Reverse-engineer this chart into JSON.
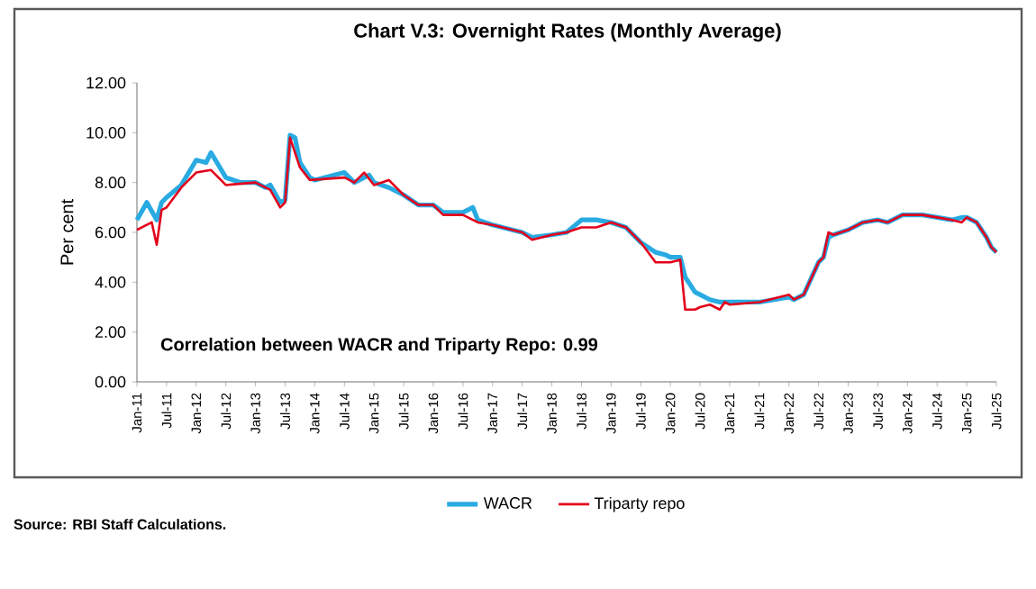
{
  "chart_data": {
    "type": "line",
    "title": "Chart V.3: Overnight Rates (Monthly Average)",
    "ylabel": "Per cent",
    "annotations": [
      "Correlation between WACR and Triparty Repo: 0.99",
      "Source: RBI Staff Calculations."
    ],
    "xlim": [
      "2011-01",
      "2025-07"
    ],
    "ylim": [
      0,
      12
    ],
    "xticks": [
      {
        "value": "2011-01",
        "label": "Jan-11"
      },
      {
        "value": "2011-07",
        "label": "Jul-11"
      },
      {
        "value": "2012-01",
        "label": "Jan-12"
      },
      {
        "value": "2012-07",
        "label": "Jul-12"
      },
      {
        "value": "2013-01",
        "label": "Jan-13"
      },
      {
        "value": "2013-07",
        "label": "Jul-13"
      },
      {
        "value": "2014-01",
        "label": "Jan-14"
      },
      {
        "value": "2014-07",
        "label": "Jul-14"
      },
      {
        "value": "2015-01",
        "label": "Jan-15"
      },
      {
        "value": "2015-07",
        "label": "Jul-15"
      },
      {
        "value": "2016-01",
        "label": "Jan-16"
      },
      {
        "value": "2016-07",
        "label": "Jul-16"
      },
      {
        "value": "2017-01",
        "label": "Jan-17"
      },
      {
        "value": "2017-07",
        "label": "Jul-17"
      },
      {
        "value": "2018-01",
        "label": "Jan-18"
      },
      {
        "value": "2018-07",
        "label": "Jul-18"
      },
      {
        "value": "2019-01",
        "label": "Jan-19"
      },
      {
        "value": "2019-07",
        "label": "Jul-19"
      },
      {
        "value": "2020-01",
        "label": "Jan-20"
      },
      {
        "value": "2020-07",
        "label": "Jul-20"
      },
      {
        "value": "2021-01",
        "label": "Jan-21"
      },
      {
        "value": "2021-07",
        "label": "Jul-21"
      },
      {
        "value": "2022-01",
        "label": "Jan-22"
      },
      {
        "value": "2022-07",
        "label": "Jul-22"
      },
      {
        "value": "2023-01",
        "label": "Jan-23"
      },
      {
        "value": "2023-07",
        "label": "Jul-23"
      },
      {
        "value": "2024-01",
        "label": "Jan-24"
      },
      {
        "value": "2024-07",
        "label": "Jul-24"
      },
      {
        "value": "2025-01",
        "label": "Jan-25"
      },
      {
        "value": "2025-07",
        "label": "Jul-25"
      }
    ],
    "yticks": [
      {
        "value": 0,
        "label": "0.00"
      },
      {
        "value": 2,
        "label": "2.00"
      },
      {
        "value": 4,
        "label": "4.00"
      },
      {
        "value": 6,
        "label": "6.00"
      },
      {
        "value": 8,
        "label": "8.00"
      },
      {
        "value": 10,
        "label": "10.00"
      },
      {
        "value": 12,
        "label": "12.00"
      }
    ],
    "legend": "bottom",
    "series": [
      {
        "name": "WACR",
        "color": "#29abe2",
        "x": [
          "2011-01",
          "2011-03",
          "2011-05",
          "2011-06",
          "2011-07",
          "2011-10",
          "2012-01",
          "2012-03",
          "2012-04",
          "2012-07",
          "2012-10",
          "2013-01",
          "2013-03",
          "2013-04",
          "2013-06",
          "2013-07",
          "2013-08",
          "2013-09",
          "2013-10",
          "2013-12",
          "2014-01",
          "2014-07",
          "2014-09",
          "2014-12",
          "2015-01",
          "2015-04",
          "2015-07",
          "2015-10",
          "2016-01",
          "2016-03",
          "2016-07",
          "2016-09",
          "2016-10",
          "2017-01",
          "2017-07",
          "2017-09",
          "2018-01",
          "2018-04",
          "2018-07",
          "2018-10",
          "2019-01",
          "2019-04",
          "2019-07",
          "2019-10",
          "2019-12",
          "2020-01",
          "2020-03",
          "2020-04",
          "2020-06",
          "2020-07",
          "2020-09",
          "2020-11",
          "2021-01",
          "2021-07",
          "2022-01",
          "2022-02",
          "2022-04",
          "2022-07",
          "2022-08",
          "2022-09",
          "2022-10",
          "2023-01",
          "2023-04",
          "2023-07",
          "2023-09",
          "2023-12",
          "2024-01",
          "2024-04",
          "2024-07",
          "2024-10",
          "2024-12",
          "2025-01",
          "2025-03",
          "2025-04",
          "2025-05",
          "2025-06",
          "2025-07"
        ],
        "values": [
          6.5,
          7.2,
          6.5,
          7.2,
          7.4,
          7.9,
          8.9,
          8.8,
          9.2,
          8.2,
          8.0,
          8.0,
          7.8,
          7.9,
          7.2,
          7.3,
          9.9,
          9.8,
          8.8,
          8.2,
          8.1,
          8.4,
          8.0,
          8.3,
          8.0,
          7.8,
          7.5,
          7.1,
          7.1,
          6.8,
          6.8,
          7.0,
          6.5,
          6.3,
          6.0,
          5.8,
          5.9,
          6.0,
          6.5,
          6.5,
          6.4,
          6.2,
          5.6,
          5.2,
          5.1,
          5.0,
          5.0,
          4.2,
          3.6,
          3.5,
          3.3,
          3.2,
          3.2,
          3.2,
          3.4,
          3.3,
          3.5,
          4.8,
          5.0,
          5.8,
          5.9,
          6.1,
          6.4,
          6.5,
          6.4,
          6.7,
          6.7,
          6.7,
          6.6,
          6.5,
          6.6,
          6.6,
          6.4,
          6.1,
          5.8,
          5.4,
          5.2
        ]
      },
      {
        "name": "Triparty repo",
        "color": "#e3001b",
        "x": [
          "2011-01",
          "2011-04",
          "2011-05",
          "2011-06",
          "2011-07",
          "2011-10",
          "2012-01",
          "2012-04",
          "2012-07",
          "2013-01",
          "2013-04",
          "2013-06",
          "2013-07",
          "2013-08",
          "2013-10",
          "2013-12",
          "2014-07",
          "2014-09",
          "2014-11",
          "2015-01",
          "2015-04",
          "2015-07",
          "2015-10",
          "2016-01",
          "2016-03",
          "2016-07",
          "2016-10",
          "2017-01",
          "2017-07",
          "2017-09",
          "2018-01",
          "2018-04",
          "2018-07",
          "2018-10",
          "2019-01",
          "2019-04",
          "2019-07",
          "2019-10",
          "2019-12",
          "2020-01",
          "2020-03",
          "2020-04",
          "2020-06",
          "2020-07",
          "2020-09",
          "2020-11",
          "2020-12",
          "2021-01",
          "2021-07",
          "2022-01",
          "2022-02",
          "2022-04",
          "2022-07",
          "2022-08",
          "2022-09",
          "2022-10",
          "2023-01",
          "2023-04",
          "2023-07",
          "2023-09",
          "2023-12",
          "2024-01",
          "2024-04",
          "2024-07",
          "2024-10",
          "2024-12",
          "2025-01",
          "2025-03",
          "2025-04",
          "2025-05",
          "2025-06",
          "2025-07"
        ],
        "values": [
          6.1,
          6.4,
          5.5,
          6.9,
          7.0,
          7.8,
          8.4,
          8.5,
          7.9,
          8.0,
          7.7,
          7.0,
          7.2,
          9.8,
          8.6,
          8.1,
          8.2,
          8.0,
          8.4,
          7.9,
          8.1,
          7.5,
          7.1,
          7.1,
          6.7,
          6.7,
          6.4,
          6.3,
          6.0,
          5.7,
          5.9,
          6.0,
          6.2,
          6.2,
          6.4,
          6.2,
          5.6,
          4.8,
          4.8,
          4.8,
          4.9,
          2.9,
          2.9,
          3.0,
          3.1,
          2.9,
          3.2,
          3.1,
          3.2,
          3.5,
          3.3,
          3.5,
          4.8,
          5.0,
          6.0,
          5.9,
          6.1,
          6.4,
          6.5,
          6.4,
          6.7,
          6.7,
          6.7,
          6.6,
          6.5,
          6.4,
          6.6,
          6.4,
          6.1,
          5.8,
          5.4,
          5.2
        ]
      }
    ]
  }
}
